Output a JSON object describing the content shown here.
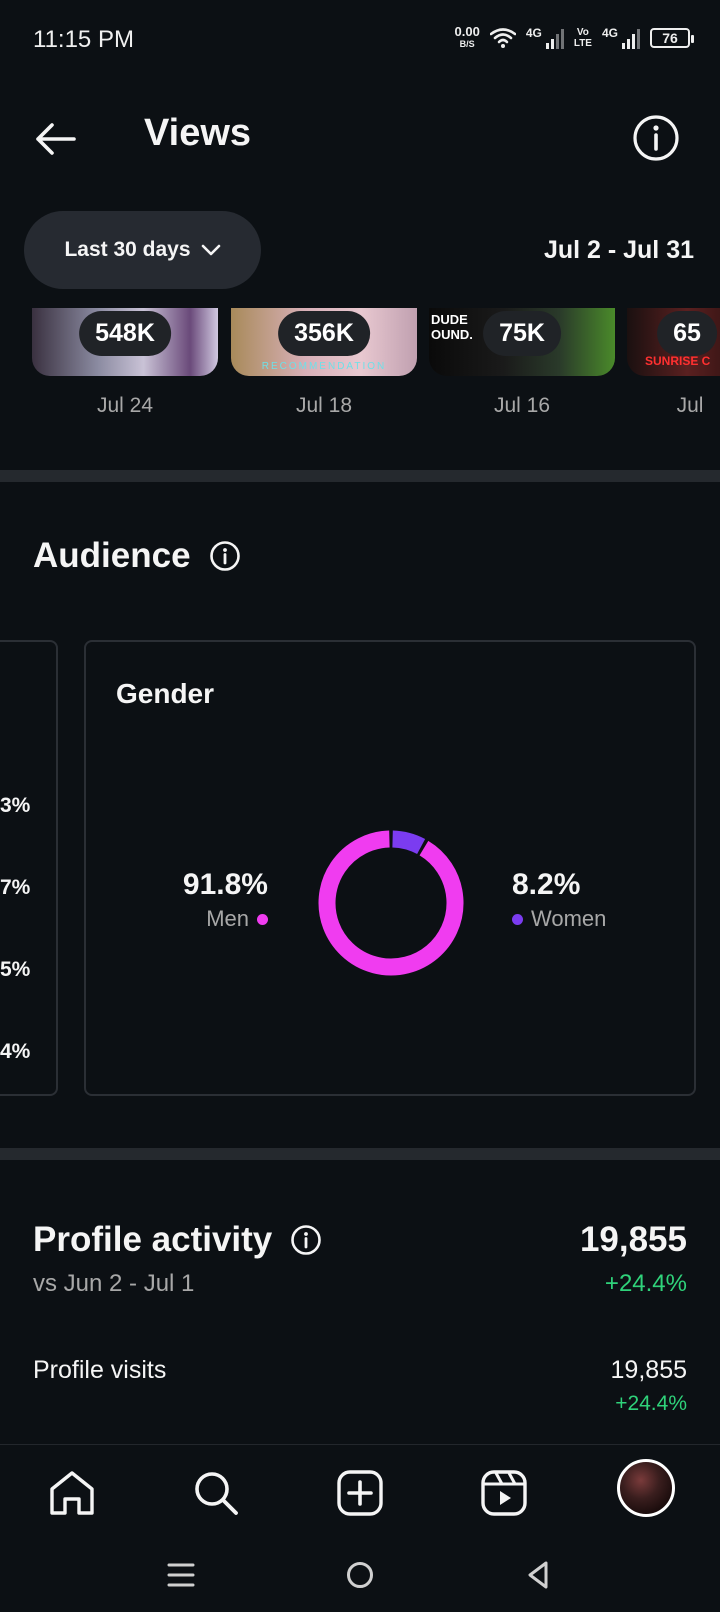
{
  "status_bar": {
    "time": "11:15 PM",
    "net_speed": "0.00",
    "net_unit": "B/S",
    "sig1_label": "4G",
    "volte_top": "Vo",
    "volte_bottom": "LTE",
    "sig2_label": "4G",
    "battery": "76"
  },
  "header": {
    "title": "Views"
  },
  "filter": {
    "label": "Last 30 days",
    "date_range": "Jul 2 - Jul 31"
  },
  "thumbnails": [
    {
      "views": "548K",
      "date": "Jul 24",
      "caption": ""
    },
    {
      "views": "356K",
      "date": "Jul 18",
      "caption": "RECOMMENDATION"
    },
    {
      "views": "75K",
      "date": "Jul 16",
      "caption": "DUDE OUND."
    },
    {
      "views": "65",
      "date": "Jul",
      "caption": "SUNRISE C"
    }
  ],
  "audience": {
    "title": "Audience",
    "prev_card_values": [
      "3%",
      "7%",
      "5%",
      "4%"
    ],
    "gender_card": {
      "title": "Gender",
      "men_pct": "91.8%",
      "men_label": "Men",
      "women_pct": "8.2%",
      "women_label": "Women",
      "men_value": 91.8,
      "women_value": 8.2,
      "men_color": "#f03cf0",
      "women_color": "#7b3cf0"
    }
  },
  "profile_activity": {
    "title": "Profile activity",
    "comparison": "vs Jun 2 - Jul 1",
    "total": "19,855",
    "total_change": "+24.4%",
    "rows": [
      {
        "label": "Profile visits",
        "value": "19,855",
        "change": "+24.4%"
      }
    ]
  },
  "colors": {
    "background": "#0c1014",
    "positive": "#2fd27a"
  }
}
